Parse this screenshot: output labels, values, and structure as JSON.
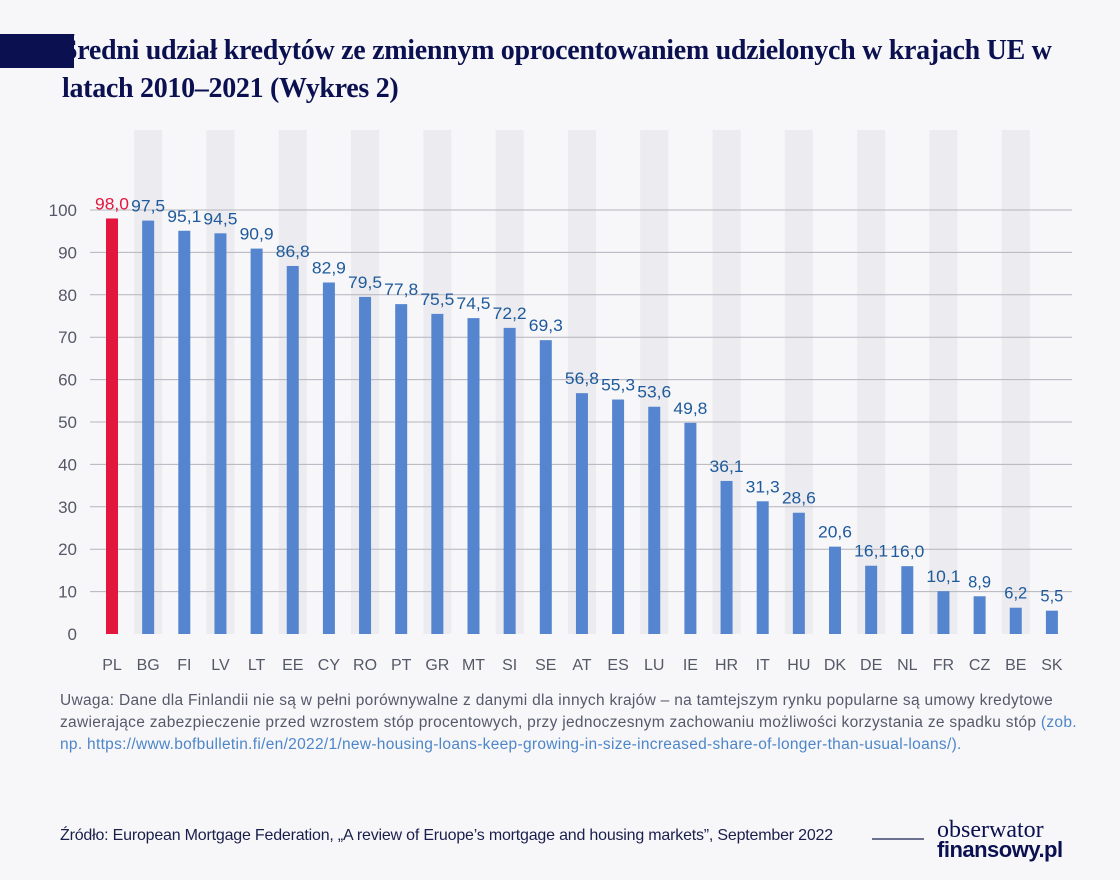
{
  "title": "Średni udział kredytów ze zmiennym oprocentowaniem udzielonych w krajach UE w latach 2010–2021 (Wykres 2)",
  "chart_data": {
    "type": "bar",
    "categories": [
      "PL",
      "BG",
      "FI",
      "LV",
      "LT",
      "EE",
      "CY",
      "RO",
      "PT",
      "GR",
      "MT",
      "SI",
      "SE",
      "AT",
      "ES",
      "LU",
      "IE",
      "HR",
      "IT",
      "HU",
      "DK",
      "DE",
      "NL",
      "FR",
      "CZ",
      "BE",
      "SK"
    ],
    "values": [
      98.0,
      97.5,
      95.1,
      94.5,
      90.9,
      86.8,
      82.9,
      79.5,
      77.8,
      75.5,
      74.5,
      72.2,
      69.3,
      56.8,
      55.3,
      53.6,
      49.8,
      36.1,
      31.3,
      28.6,
      20.6,
      16.1,
      16.0,
      10.1,
      8.9,
      6.2,
      5.5
    ],
    "labels": [
      "98,0",
      "97,5",
      "95,1",
      "94,5",
      "90,9",
      "86,8",
      "82,9",
      "79,5",
      "77,8",
      "75,5",
      "74,5",
      "72,2",
      "69,3",
      "56,8",
      "55,3",
      "53,6",
      "49,8",
      "36,1",
      "31,3",
      "28,6",
      "20,6",
      "16,1",
      "16,0",
      "10,1",
      "8,9",
      "6,2",
      "5,5"
    ],
    "yticks": [
      "0",
      "10",
      "20",
      "30",
      "40",
      "50",
      "60",
      "70",
      "80",
      "90",
      "100"
    ],
    "ylim": [
      0,
      100
    ],
    "grid": true,
    "colors": {
      "highlight": "#e3173e",
      "bar": "#5585cf",
      "label": "#1e5a9a",
      "stripe": "#ebebf0",
      "grid": "#b4b4bc"
    }
  },
  "note": {
    "text": "Uwaga: Dane dla Finlandii nie są w pełni porównywalne z danymi dla innych krajów – na tamtejszym rynku popularne są umowy kredytowe zawierające zabezpieczenie przed wzrostem stóp procentowych, przy jednoczesnym zachowaniu możliwości korzystania ze spadku stóp ",
    "link": "(zob. np. https://www.bofbulletin.fi/en/2022/1/new-housing-loans-keep-growing-in-size-increased-share-of-longer-than-usual-loans/)."
  },
  "source": "Źródło: European Mortgage Federation, „A review of Eruope’s mortgage and housing markets”, September 2022",
  "logo": {
    "line1": "obserwator",
    "line2": "finansowy.pl"
  }
}
